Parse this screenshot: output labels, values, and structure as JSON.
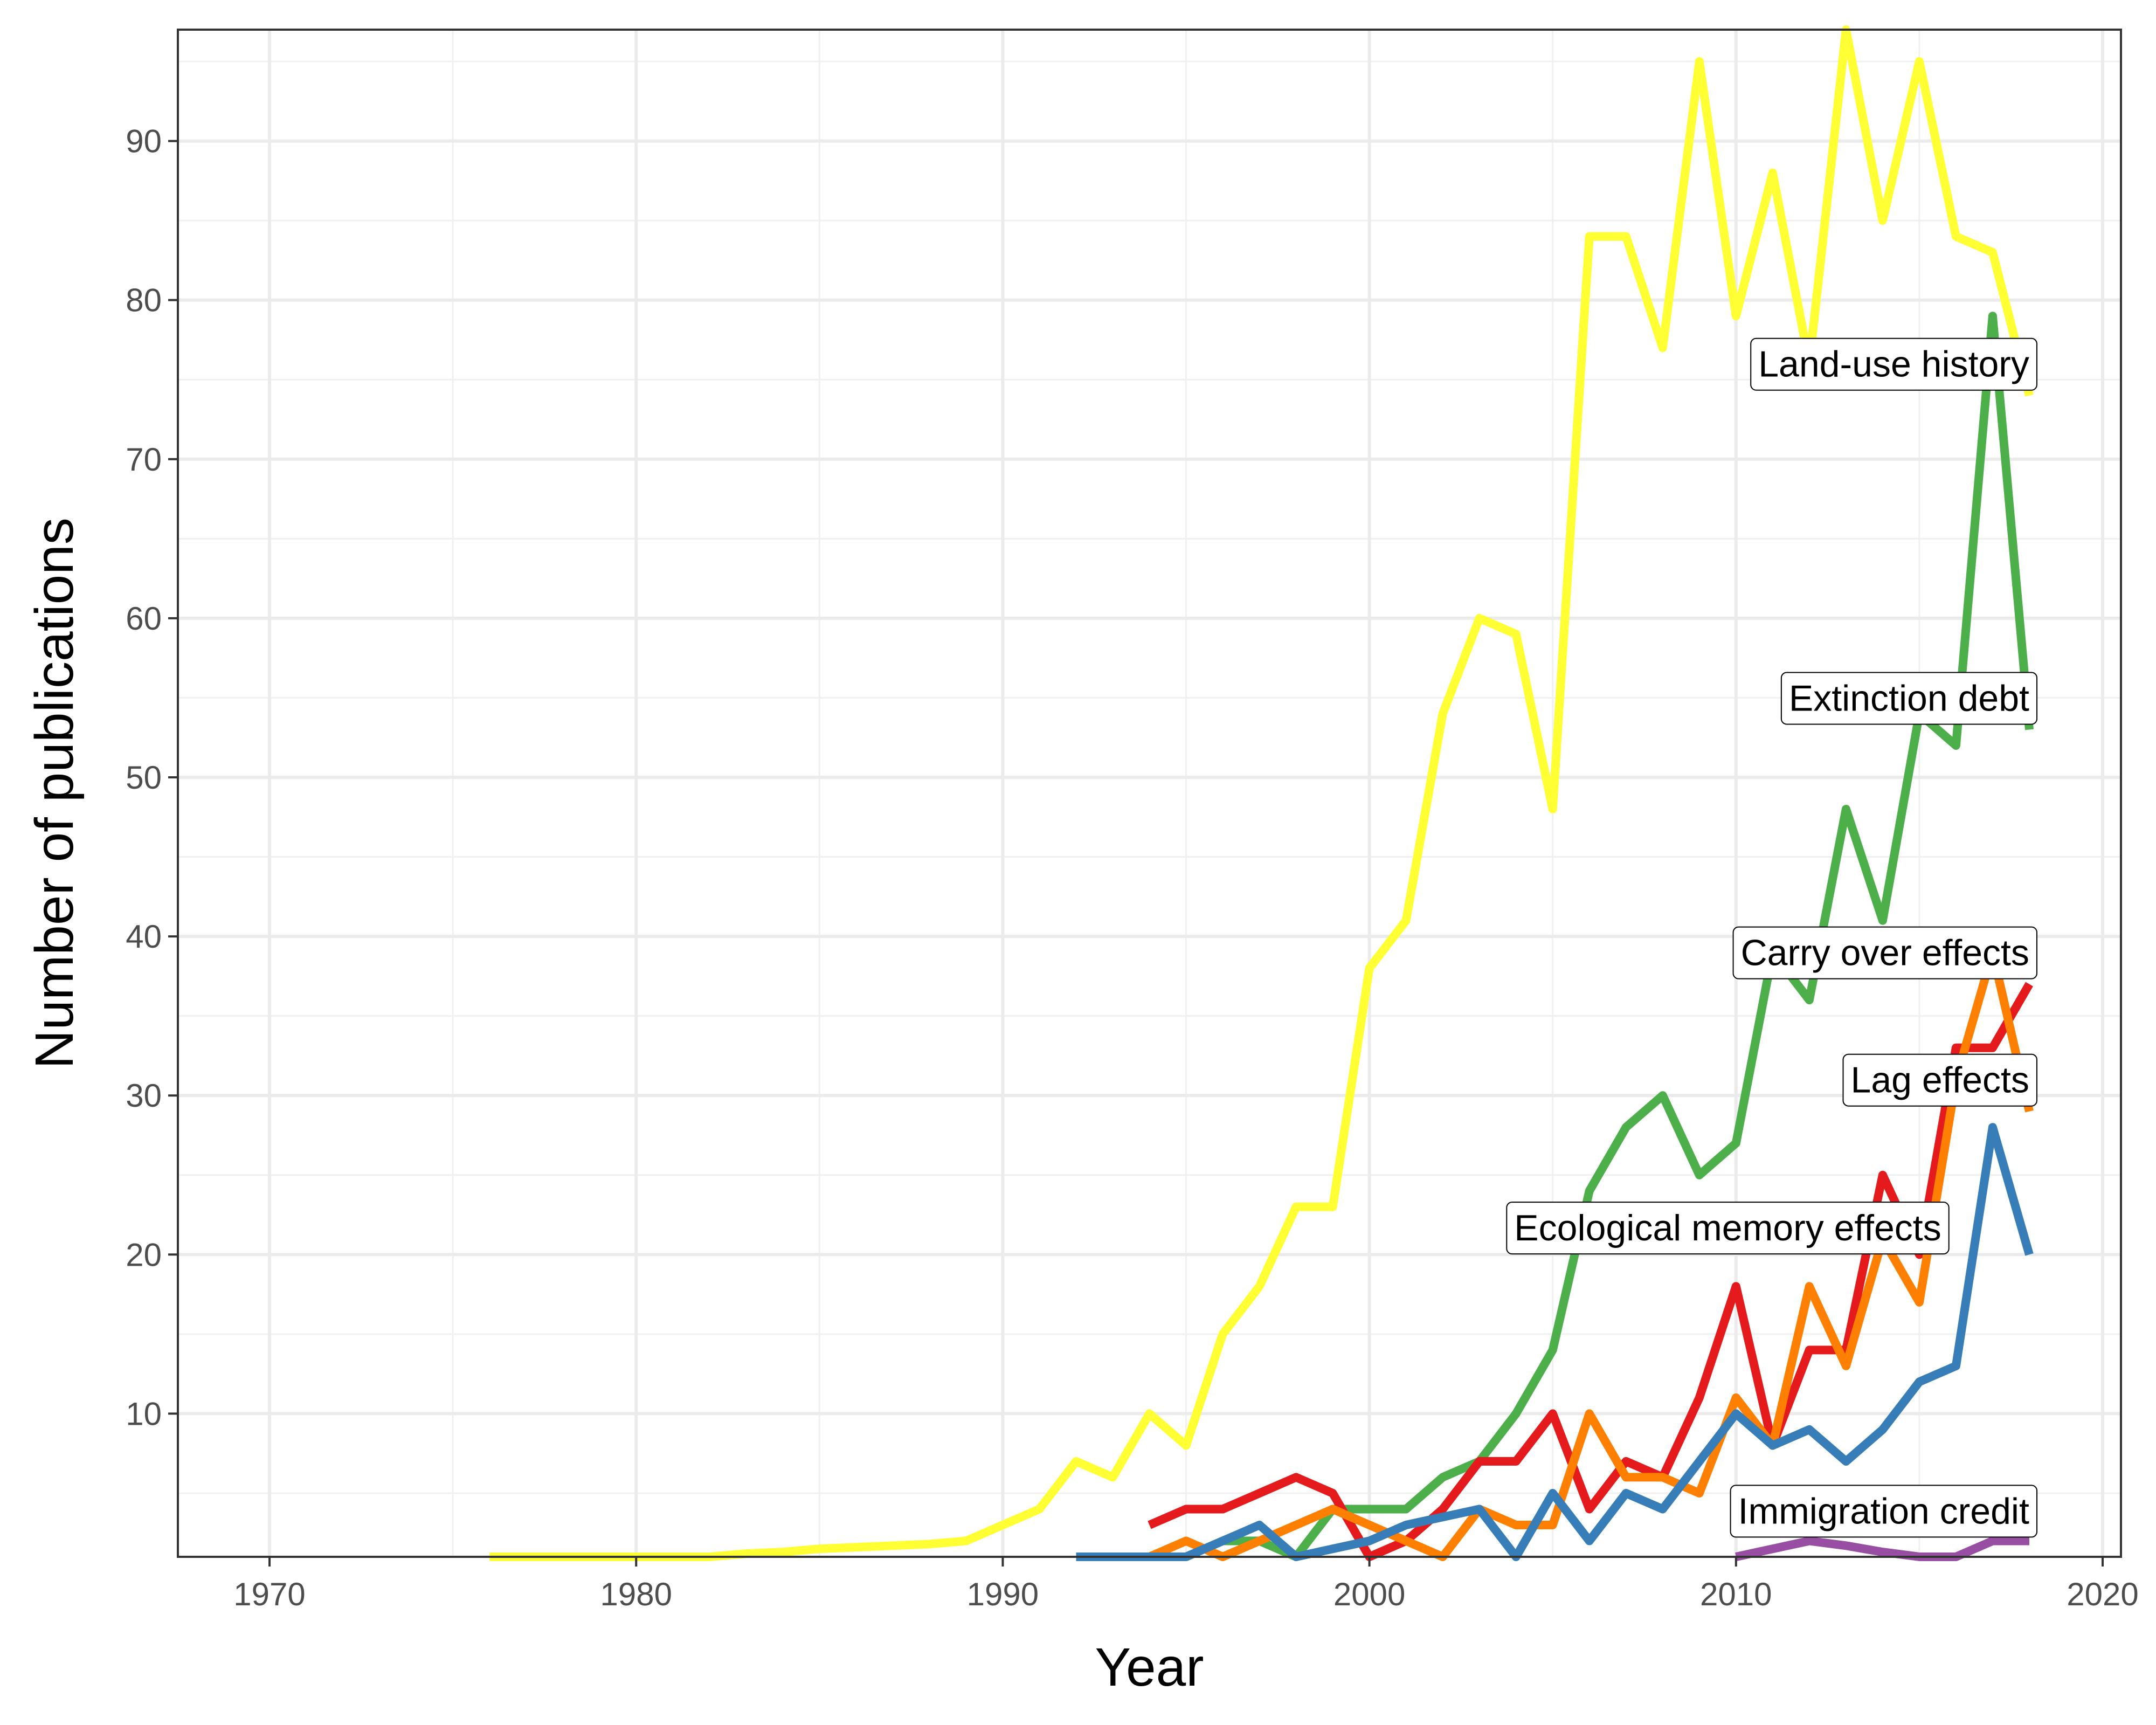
{
  "chart_data": {
    "type": "line",
    "xlabel": "Year",
    "ylabel": "Number of publications",
    "xlim": [
      1967.5,
      2020.5
    ],
    "ylim": [
      1,
      97
    ],
    "x_ticks": [
      1970,
      1980,
      1990,
      2000,
      2010,
      2020
    ],
    "y_ticks": [
      10,
      20,
      30,
      40,
      50,
      60,
      70,
      80,
      90
    ],
    "grid": true,
    "legend": "direct labels at series ends",
    "series": [
      {
        "name": "Land-use history",
        "color": "#FFFF33",
        "x": [
          1976,
          1977,
          1978,
          1979,
          1980,
          1981,
          1982,
          1983,
          1984,
          1985,
          1986,
          1987,
          1988,
          1989,
          1990,
          1991,
          1992,
          1993,
          1994,
          1995,
          1996,
          1997,
          1998,
          1999,
          2000,
          2001,
          2002,
          2003,
          2004,
          2005,
          2006,
          2007,
          2008,
          2009,
          2010,
          2011,
          2012,
          2013,
          2014,
          2015,
          2016,
          2017,
          2018
        ],
        "y": [
          1,
          1,
          1,
          1,
          1,
          1,
          1,
          1.2,
          1.3,
          1.5,
          1.6,
          1.7,
          1.8,
          2,
          3,
          4,
          7,
          6,
          10,
          8,
          15,
          18,
          23,
          23,
          38,
          41,
          54,
          60,
          59,
          48,
          84,
          84,
          77,
          95,
          79,
          88,
          76,
          97,
          85,
          95,
          84,
          83,
          74
        ]
      },
      {
        "name": "Extinction debt",
        "color": "#4DAF4A",
        "x": [
          1995,
          1996,
          1997,
          1998,
          1999,
          2000,
          2001,
          2002,
          2003,
          2004,
          2005,
          2006,
          2007,
          2008,
          2009,
          2010,
          2011,
          2012,
          2013,
          2014,
          2015,
          2016,
          2017,
          2018
        ],
        "y": [
          1,
          2,
          2,
          1,
          4,
          4,
          4,
          6,
          7,
          10,
          14,
          24,
          28,
          30,
          25,
          27,
          39,
          36,
          48,
          41,
          54,
          52,
          79,
          53
        ]
      },
      {
        "name": "Carry over effects",
        "color": "#E41A1C",
        "x": [
          1994,
          1995,
          1996,
          1997,
          1998,
          1999,
          2000,
          2001,
          2002,
          2003,
          2004,
          2005,
          2006,
          2007,
          2008,
          2009,
          2010,
          2011,
          2012,
          2013,
          2014,
          2015,
          2016,
          2017,
          2018
        ],
        "y": [
          3,
          4,
          4,
          5,
          6,
          5,
          1,
          2,
          4,
          7,
          7,
          10,
          4,
          7,
          6,
          11,
          18,
          8,
          14,
          14,
          25,
          20,
          33,
          33,
          37
        ]
      },
      {
        "name": "Lag effects",
        "color": "#FF7F00",
        "x": [
          1993,
          1994,
          1995,
          1996,
          1997,
          1998,
          1999,
          2000,
          2001,
          2002,
          2003,
          2004,
          2005,
          2006,
          2007,
          2008,
          2009,
          2010,
          2011,
          2012,
          2013,
          2014,
          2015,
          2016,
          2017,
          2018
        ],
        "y": [
          1,
          1,
          2,
          1,
          2,
          3,
          4,
          3,
          2,
          1,
          4,
          3,
          3,
          10,
          6,
          6,
          5,
          11,
          8,
          18,
          13,
          21,
          17,
          31,
          39,
          29
        ]
      },
      {
        "name": "Ecological memory effects",
        "color": "#377EB8",
        "x": [
          1992,
          1993,
          1994,
          1995,
          1996,
          1997,
          1998,
          1999,
          2000,
          2001,
          2002,
          2003,
          2004,
          2005,
          2006,
          2007,
          2008,
          2009,
          2010,
          2011,
          2012,
          2013,
          2014,
          2015,
          2016,
          2017,
          2018
        ],
        "y": [
          1,
          1,
          1,
          1,
          2,
          3,
          1,
          1.5,
          2,
          3,
          3.5,
          4,
          1,
          5,
          2,
          5,
          4,
          7,
          10,
          8,
          9,
          7,
          9,
          12,
          13,
          28,
          20
        ]
      },
      {
        "name": "Immigration credit",
        "color": "#984EA3",
        "x": [
          2010,
          2011,
          2012,
          2013,
          2014,
          2015,
          2016,
          2017,
          2018
        ],
        "y": [
          1,
          1.5,
          2,
          1.7,
          1.3,
          1,
          1,
          2,
          2
        ]
      }
    ],
    "labels": [
      {
        "text": "Land-use history",
        "x": 2018,
        "y": 76
      },
      {
        "text": "Extinction debt",
        "x": 2018,
        "y": 55
      },
      {
        "text": "Carry over effects",
        "x": 2018,
        "y": 39
      },
      {
        "text": "Lag effects",
        "x": 2018,
        "y": 31
      },
      {
        "text": "Ecological memory effects",
        "x": 2015.6,
        "y": 21.7
      },
      {
        "text": "Immigration credit",
        "x": 2018,
        "y": 3.9
      }
    ]
  }
}
